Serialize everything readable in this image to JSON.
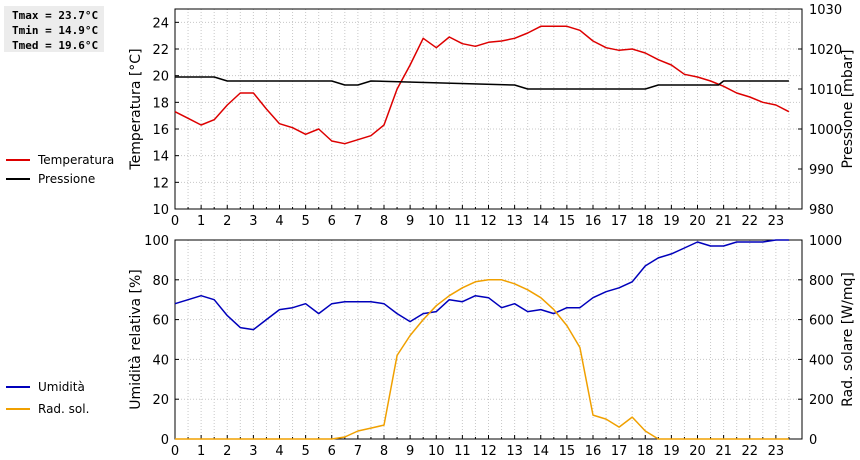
{
  "stats": {
    "tmax": "Tmax = 23.7°C",
    "tmin": "Tmin = 14.9°C",
    "tmed": "Tmed = 19.6°C"
  },
  "chart_data": [
    {
      "type": "line",
      "x_ticks": [
        "0",
        "1",
        "2",
        "3",
        "4",
        "5",
        "6",
        "7",
        "8",
        "9",
        "10",
        "11",
        "12",
        "13",
        "14",
        "15",
        "16",
        "17",
        "18",
        "19",
        "20",
        "21",
        "22",
        "23"
      ],
      "xlim": [
        0,
        24
      ],
      "ylabel": "Temperatura [°C]",
      "ylim": [
        10,
        25
      ],
      "y_ticks": [
        10,
        12,
        14,
        16,
        18,
        20,
        22,
        24
      ],
      "y2label": "Pressione [mbar]",
      "y2lim": [
        980,
        1030
      ],
      "y2_ticks": [
        980,
        990,
        1000,
        1010,
        1020,
        1030
      ],
      "grid": true,
      "legend_position": "left",
      "series": [
        {
          "name": "Temperatura",
          "color": "#dd0000",
          "axis": "left",
          "x": [
            0,
            0.5,
            1,
            1.5,
            2,
            2.5,
            3,
            3.5,
            4,
            4.5,
            5,
            5.5,
            6,
            6.5,
            7,
            7.5,
            8,
            8.5,
            9,
            9.5,
            10,
            10.5,
            11,
            11.5,
            12,
            12.5,
            13,
            13.5,
            14,
            14.5,
            15,
            15.5,
            16,
            16.5,
            17,
            17.5,
            18,
            18.5,
            19,
            19.5,
            20,
            20.5,
            21,
            21.5,
            22,
            22.5,
            23,
            23.5
          ],
          "y": [
            17.3,
            16.8,
            16.3,
            16.7,
            17.8,
            18.7,
            18.7,
            17.5,
            16.4,
            16.1,
            15.6,
            16.0,
            15.1,
            14.9,
            15.2,
            15.5,
            16.3,
            19.0,
            20.8,
            22.8,
            22.1,
            22.9,
            22.4,
            22.2,
            22.5,
            22.6,
            22.8,
            23.2,
            23.7,
            23.7,
            23.7,
            23.4,
            22.6,
            22.1,
            21.9,
            22.0,
            21.7,
            21.2,
            20.8,
            20.1,
            19.9,
            19.6,
            19.2,
            18.7,
            18.4,
            18.0,
            17.8,
            17.3
          ]
        },
        {
          "name": "Pressione",
          "color": "#000000",
          "axis": "right",
          "x": [
            0,
            1.5,
            2,
            6,
            6.5,
            7,
            7.5,
            13,
            13.5,
            18,
            18.5,
            20.8,
            21,
            23.5
          ],
          "y": [
            1013,
            1013,
            1012,
            1012,
            1011,
            1011,
            1012,
            1011,
            1010,
            1010,
            1011,
            1011,
            1012,
            1012
          ]
        }
      ]
    },
    {
      "type": "line",
      "x_ticks": [
        "0",
        "1",
        "2",
        "3",
        "4",
        "5",
        "6",
        "7",
        "8",
        "9",
        "10",
        "11",
        "12",
        "13",
        "14",
        "15",
        "16",
        "17",
        "18",
        "19",
        "20",
        "21",
        "22",
        "23"
      ],
      "xlim": [
        0,
        24
      ],
      "ylabel": "Umidità relativa [%]",
      "ylim": [
        0,
        100
      ],
      "y_ticks": [
        0,
        20,
        40,
        60,
        80,
        100
      ],
      "y2label": "Rad. solare [W/mq]",
      "y2lim": [
        0,
        1000
      ],
      "y2_ticks": [
        0,
        200,
        400,
        600,
        800,
        1000
      ],
      "grid": true,
      "legend_position": "left",
      "series": [
        {
          "name": "Umidità",
          "color": "#0000bb",
          "axis": "left",
          "x": [
            0,
            0.5,
            1,
            1.5,
            2,
            2.5,
            3,
            3.5,
            4,
            4.5,
            5,
            5.5,
            6,
            6.5,
            7,
            7.5,
            8,
            8.5,
            9,
            9.5,
            10,
            10.5,
            11,
            11.5,
            12,
            12.5,
            13,
            13.5,
            14,
            14.5,
            15,
            15.5,
            16,
            16.5,
            17,
            17.5,
            18,
            18.5,
            19,
            19.5,
            20,
            20.5,
            21,
            21.5,
            22,
            22.5,
            23,
            23.5
          ],
          "y": [
            68,
            70,
            72,
            70,
            62,
            56,
            55,
            60,
            65,
            66,
            68,
            63,
            68,
            69,
            69,
            69,
            68,
            63,
            59,
            63,
            64,
            70,
            69,
            72,
            71,
            66,
            68,
            64,
            65,
            63,
            66,
            66,
            71,
            74,
            76,
            79,
            87,
            91,
            93,
            96,
            99,
            97,
            97,
            99,
            99,
            99,
            100,
            100
          ]
        },
        {
          "name": "Rad. sol.",
          "color": "#f0a000",
          "axis": "right",
          "x": [
            0,
            0.5,
            1,
            1.5,
            2,
            2.5,
            3,
            3.5,
            4,
            4.5,
            5,
            5.5,
            6,
            6.5,
            7,
            7.5,
            8,
            8.5,
            9,
            9.5,
            10,
            10.5,
            11,
            11.5,
            12,
            12.5,
            13,
            13.5,
            14,
            14.5,
            15,
            15.5,
            16,
            16.5,
            17,
            17.5,
            18,
            18.5,
            19,
            19.5,
            20,
            20.5,
            21,
            21.5,
            22,
            22.5,
            23,
            23.5
          ],
          "y": [
            0,
            0,
            0,
            0,
            0,
            0,
            0,
            0,
            0,
            0,
            0,
            0,
            0,
            10,
            40,
            55,
            70,
            420,
            520,
            600,
            670,
            720,
            760,
            790,
            800,
            800,
            780,
            750,
            710,
            650,
            570,
            460,
            120,
            100,
            60,
            110,
            40,
            0,
            0,
            0,
            0,
            0,
            0,
            0,
            0,
            0,
            0,
            0
          ]
        }
      ]
    }
  ]
}
